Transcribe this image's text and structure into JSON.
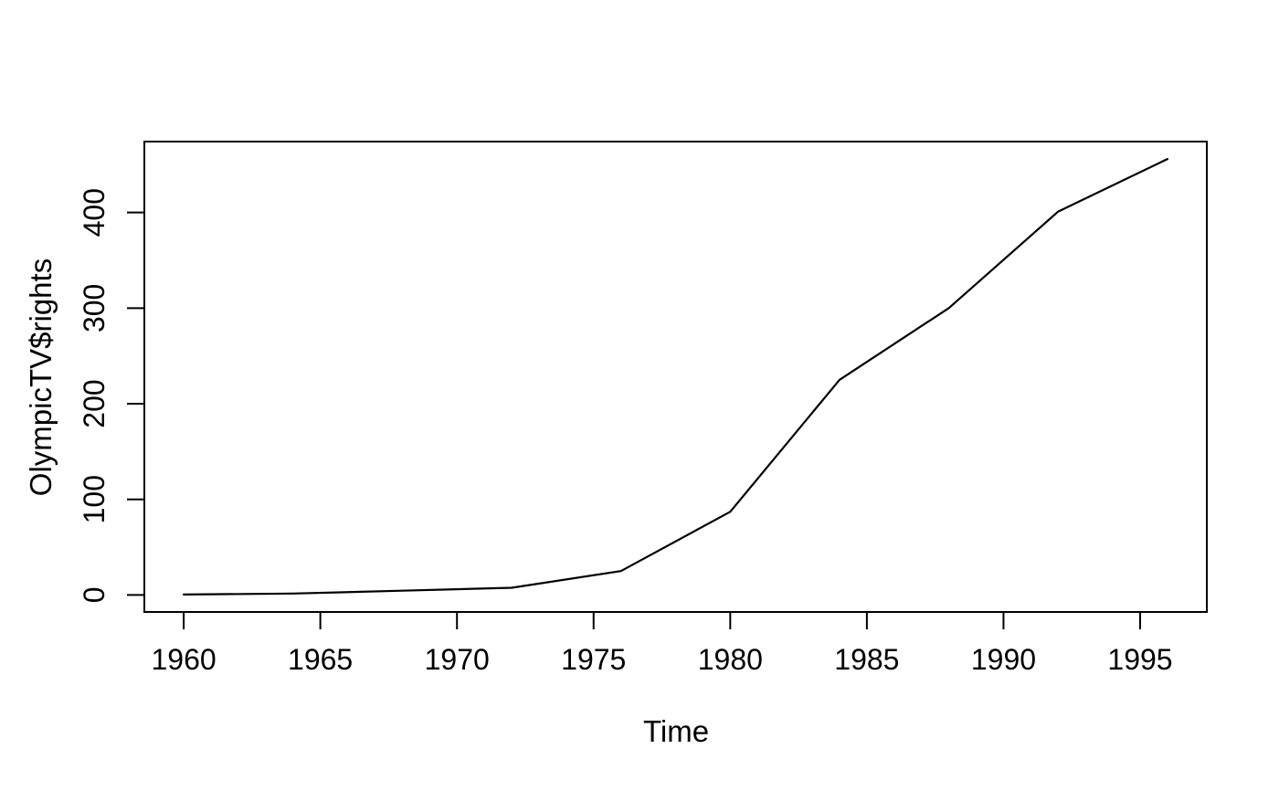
{
  "chart_data": {
    "type": "line",
    "title": "",
    "xlabel": "Time",
    "ylabel": "OlympicTV$rights",
    "x": [
      1960,
      1964,
      1968,
      1972,
      1976,
      1980,
      1984,
      1988,
      1992,
      1996
    ],
    "values": [
      0.4,
      1.5,
      4.5,
      7.5,
      25,
      87,
      225,
      300,
      401,
      456
    ],
    "series": [
      {
        "name": "OlympicTV$rights",
        "values": [
          0.4,
          1.5,
          4.5,
          7.5,
          25,
          87,
          225,
          300,
          401,
          456
        ]
      }
    ],
    "xticks": [
      1960,
      1965,
      1970,
      1975,
      1980,
      1985,
      1990,
      1995
    ],
    "yticks": [
      0,
      100,
      200,
      300,
      400
    ],
    "xlim": [
      1958.56,
      1997.44
    ],
    "ylim": [
      -17.8,
      474.2
    ],
    "grid": false,
    "legend": false,
    "line_color": "#000000",
    "axis_color": "#000000",
    "background_color": "#ffffff",
    "y_tick_labels_rotated": true
  }
}
